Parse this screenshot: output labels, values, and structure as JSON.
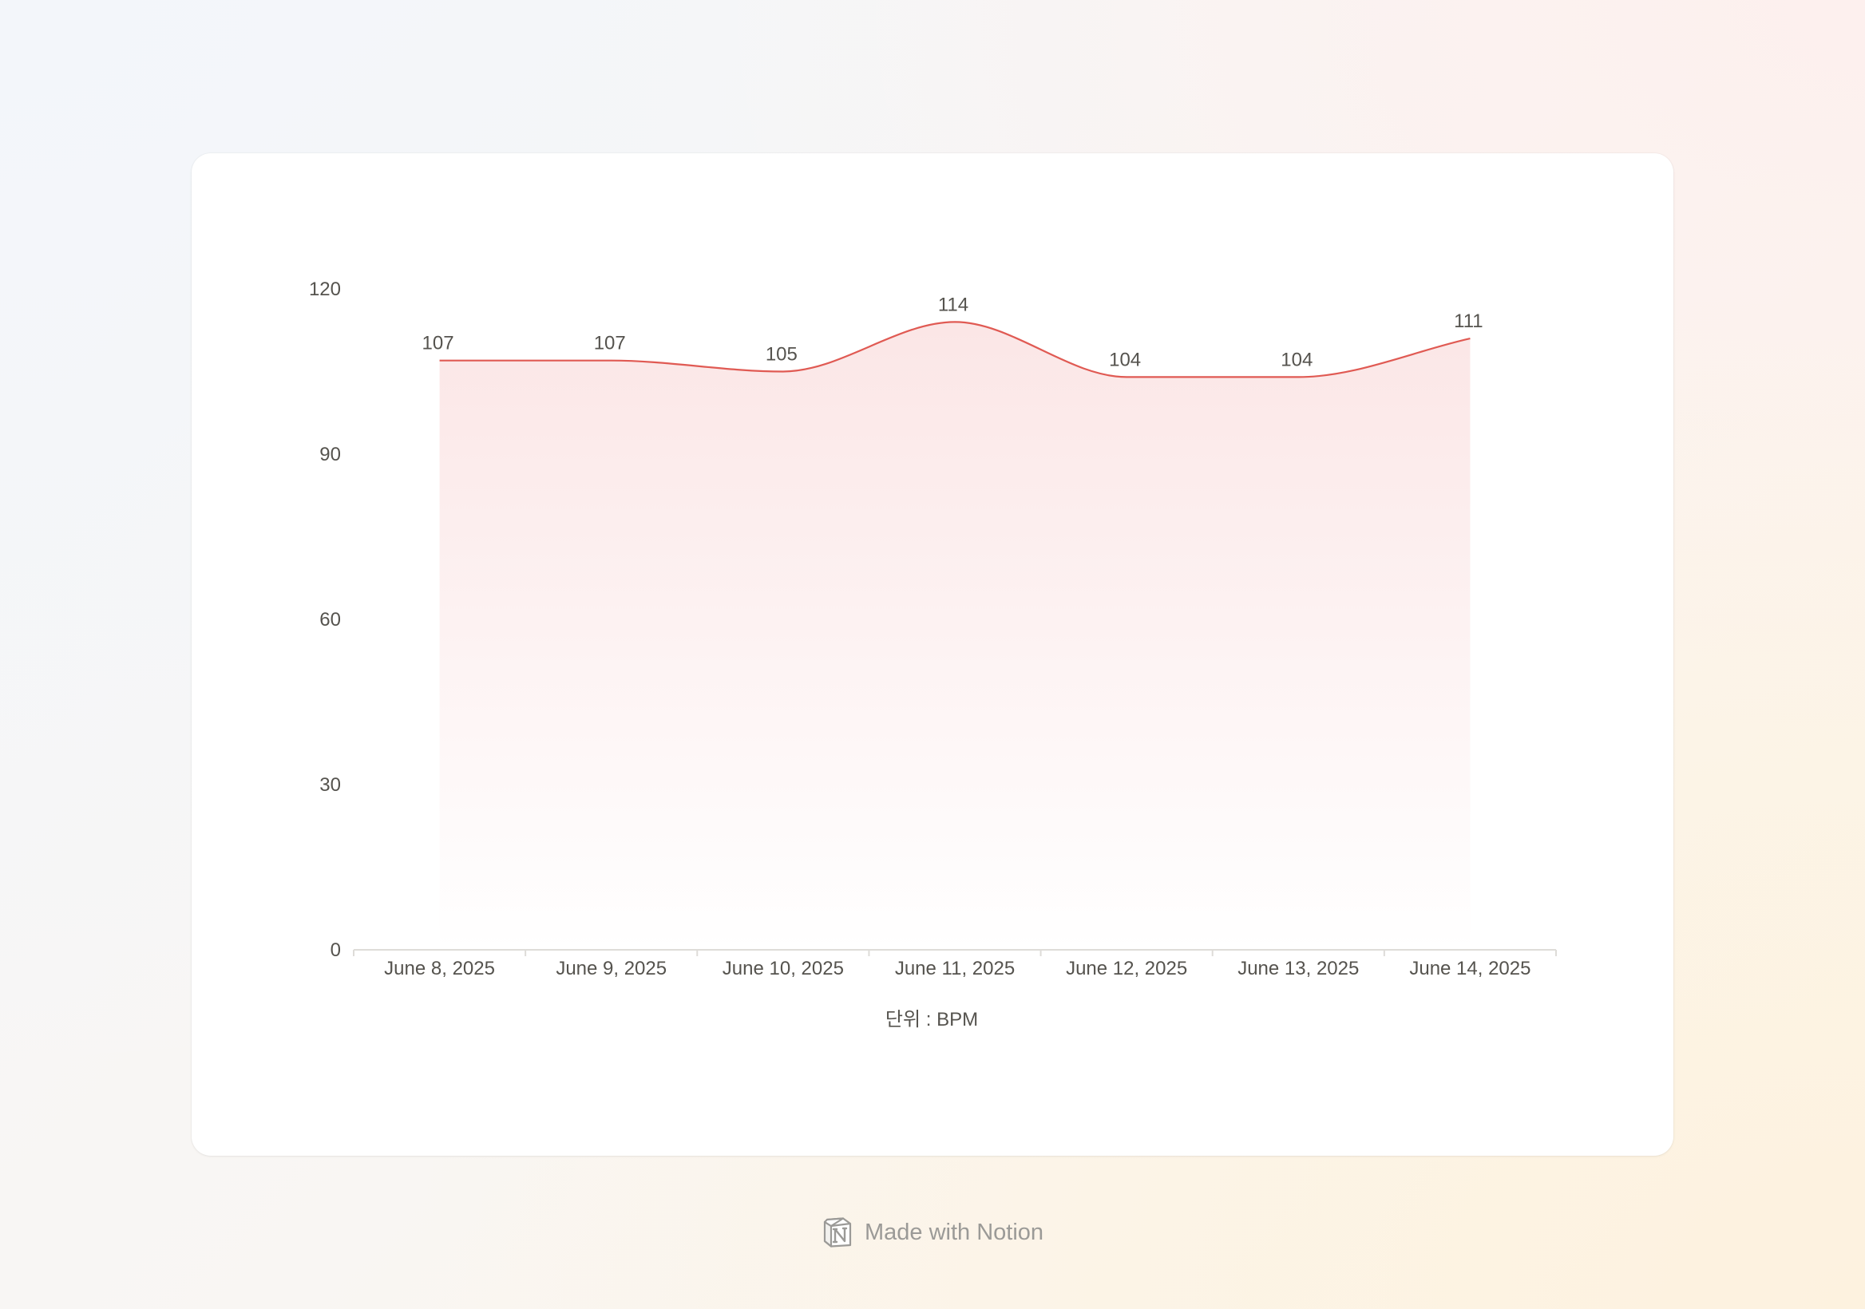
{
  "chart_data": {
    "type": "area",
    "categories": [
      "June 8, 2025",
      "June 9, 2025",
      "June 10, 2025",
      "June 11, 2025",
      "June 12, 2025",
      "June 13, 2025",
      "June 14, 2025"
    ],
    "values": [
      107,
      107,
      105,
      114,
      104,
      104,
      111
    ],
    "title": "",
    "xlabel": "단위 : BPM",
    "ylabel": "",
    "ylim": [
      0,
      120
    ],
    "yticks": [
      0,
      30,
      60,
      90,
      120
    ],
    "curve": "smooth",
    "data_labels": true,
    "grid": false,
    "line_color": "#e05a53",
    "fill_color": "#fbe6e6"
  },
  "footer": {
    "text": "Made with Notion",
    "icon": "notion-logo-icon"
  }
}
